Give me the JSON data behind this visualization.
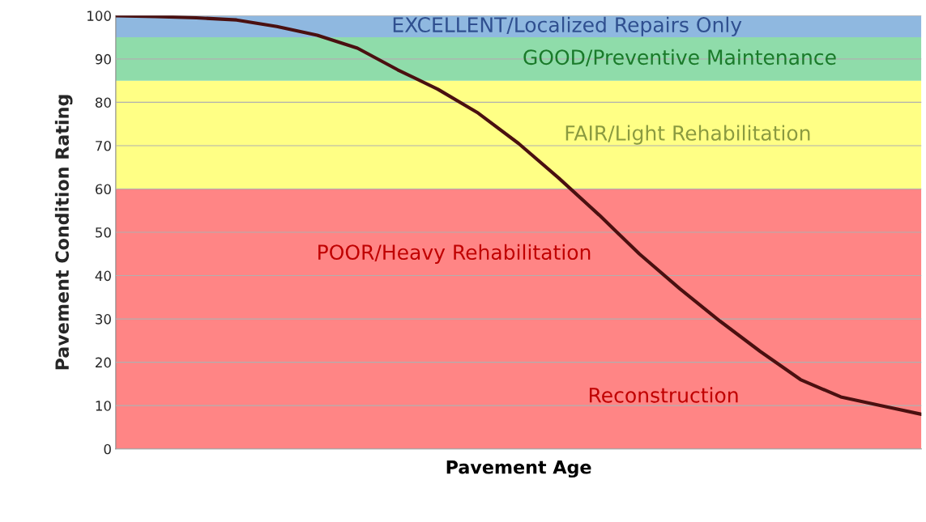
{
  "chart_data": {
    "type": "line",
    "xlabel": "Pavement Age",
    "ylabel": "Pavement Condition Rating",
    "categories": [
      null,
      null,
      null,
      null,
      null,
      null,
      null,
      null,
      null,
      null,
      null,
      null,
      null,
      null,
      null,
      null,
      null,
      null,
      null,
      null,
      null
    ],
    "series": [
      {
        "color": "#4a1010",
        "values": [
          100,
          99.8,
          99.5,
          99,
          97.5,
          95.5,
          92.5,
          87.5,
          83,
          77.5,
          70.5,
          62.5,
          54,
          45,
          37,
          29.5,
          22.5,
          16,
          12,
          10,
          8
        ]
      }
    ],
    "ylim": [
      0,
      100
    ],
    "yticks": [
      0,
      10,
      20,
      30,
      40,
      50,
      60,
      70,
      80,
      90,
      100
    ],
    "grid": "y",
    "tick_labels": "y",
    "bands": [
      {
        "axis": "y",
        "from": 0,
        "to": 60,
        "label": "POOR/Heavy Rehabilitation",
        "color": "#ff8585"
      },
      {
        "axis": "y",
        "from": 60,
        "to": 85,
        "label": "FAIR/Light Rehabilitation",
        "color": "#ffff85"
      },
      {
        "axis": "y",
        "from": 85,
        "to": 95,
        "label": "GOOD/Preventive Maintenance",
        "color": "#8fdcaa"
      },
      {
        "axis": "y",
        "from": 95,
        "to": 100,
        "label": "EXCELLENT/Localized Repairs Only",
        "color": "#8fb8e0"
      }
    ],
    "annotations": [
      "Reconstruction"
    ]
  }
}
